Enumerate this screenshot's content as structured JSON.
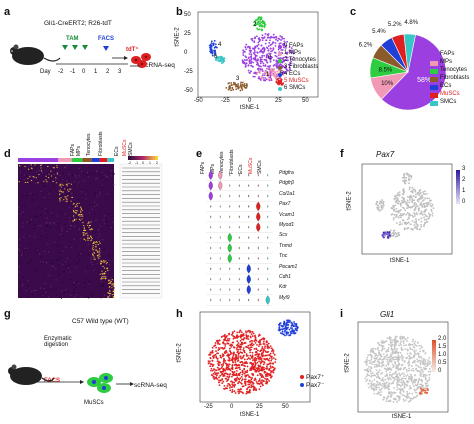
{
  "panels": {
    "a": {
      "letter": "a",
      "genotype": "Gli1-CreERT2; R26-tdT",
      "tam": "TAM",
      "facs": "FACS",
      "tdt": "tdT⁺",
      "output": "scRNA-seq",
      "day_label": "Day",
      "days": [
        "-2",
        "-1",
        "0",
        "1",
        "2",
        "3"
      ]
    },
    "b": {
      "letter": "b",
      "xlabel": "tSNE-1",
      "ylabel": "tSNE-2",
      "xticks": [
        "-50",
        "-25",
        "0",
        "25",
        "50"
      ],
      "yticks": [
        "50",
        "25",
        "0",
        "-25",
        "-50"
      ],
      "cluster_numbers": [
        "0",
        "1",
        "2",
        "3",
        "4",
        "5",
        "6"
      ],
      "legend": [
        {
          "label": "0 FAPs",
          "color": "#9b3fe0"
        },
        {
          "label": "1 MPs",
          "color": "#f19ab6"
        },
        {
          "label": "2 Tenocytes",
          "color": "#2ecc40"
        },
        {
          "label": "3 Fibroblasts",
          "color": "#8b5a2b"
        },
        {
          "label": "4 ECs",
          "color": "#1f3fd8"
        },
        {
          "label": "5 MuSCs",
          "color": "#e02020"
        },
        {
          "label": "6 SMCs",
          "color": "#38c7c7"
        }
      ]
    },
    "c": {
      "letter": "c",
      "chart_data": {
        "type": "pie",
        "categories": [
          "FAPs",
          "MPs",
          "Tenocytes",
          "Fibroblasts",
          "ECs",
          "MuSCs",
          "SMCs"
        ],
        "values": [
          58,
          10,
          8.5,
          6.2,
          5.4,
          5.2,
          4.8
        ],
        "labels": [
          "58%",
          "10%",
          "8.5%",
          "6.2%",
          "5.4%",
          "5.2%",
          "4.8%"
        ],
        "colors": [
          "#9b3fe0",
          "#f19ab6",
          "#2ecc40",
          "#8b5a2b",
          "#1f3fd8",
          "#e02020",
          "#38c7c7"
        ],
        "legend": [
          "FAPs",
          "MPs",
          "Tenocytes",
          "Fibroblasts",
          "ECs",
          "MuSCs",
          "SMCs"
        ],
        "legend_colors": [
          "#9b3fe0",
          "#f19ab6",
          "#2ecc40",
          "#8b5a2b",
          "#1f3fd8",
          "#e02020",
          "#38c7c7"
        ]
      }
    },
    "d": {
      "letter": "d",
      "groups": [
        "FAPs",
        "MPs",
        "Tenocytes",
        "Fibroblasts",
        "ECs",
        "MuSCs",
        "SMCs"
      ],
      "group_colors": [
        "#9b3fe0",
        "#f19ab6",
        "#2ecc40",
        "#8b5a2b",
        "#1f3fd8",
        "#e02020",
        "#38c7c7"
      ],
      "scale_ticks": [
        "-2",
        "-1",
        "0",
        "1",
        "2"
      ]
    },
    "e": {
      "letter": "e",
      "columns": [
        "FAPs",
        "MPs",
        "Tenocytes",
        "Fibroblasts",
        "ECs",
        "MuSCs",
        "SMCs"
      ],
      "genes": [
        "Pdgfra",
        "Pdgfrβ",
        "Col1a1",
        "Pax7",
        "Vcam1",
        "Myod1",
        "Scx",
        "Tnmd",
        "Tnc",
        "Pecam1",
        "Cdh1",
        "Kdr",
        "Myl9"
      ]
    },
    "f": {
      "letter": "f",
      "title": "Pax7",
      "xlabel": "tSNE-1",
      "ylabel": "tSNE-2",
      "scale": [
        "3",
        "2",
        "1",
        "0"
      ]
    },
    "g": {
      "letter": "g",
      "strain": "C57 Wild type (WT)",
      "digestion": "Enzymatic digestion",
      "facs": "FACS",
      "cells": "MuSCs",
      "output": "scRNA-seq"
    },
    "h": {
      "letter": "h",
      "xlabel": "tSNE-1",
      "ylabel": "tSNE-2",
      "xticks": [
        "-25",
        "0",
        "25",
        "50"
      ],
      "legend": [
        {
          "label": "Pax7⁺",
          "color": "#e02020"
        },
        {
          "label": "Pax7⁻",
          "color": "#1f3fd8"
        }
      ]
    },
    "i": {
      "letter": "i",
      "title": "Gli1",
      "xlabel": "tSNE-1",
      "ylabel": "tSNE-2",
      "scale": [
        "2.0",
        "1.5",
        "1.0",
        "0.5",
        "0"
      ]
    }
  }
}
